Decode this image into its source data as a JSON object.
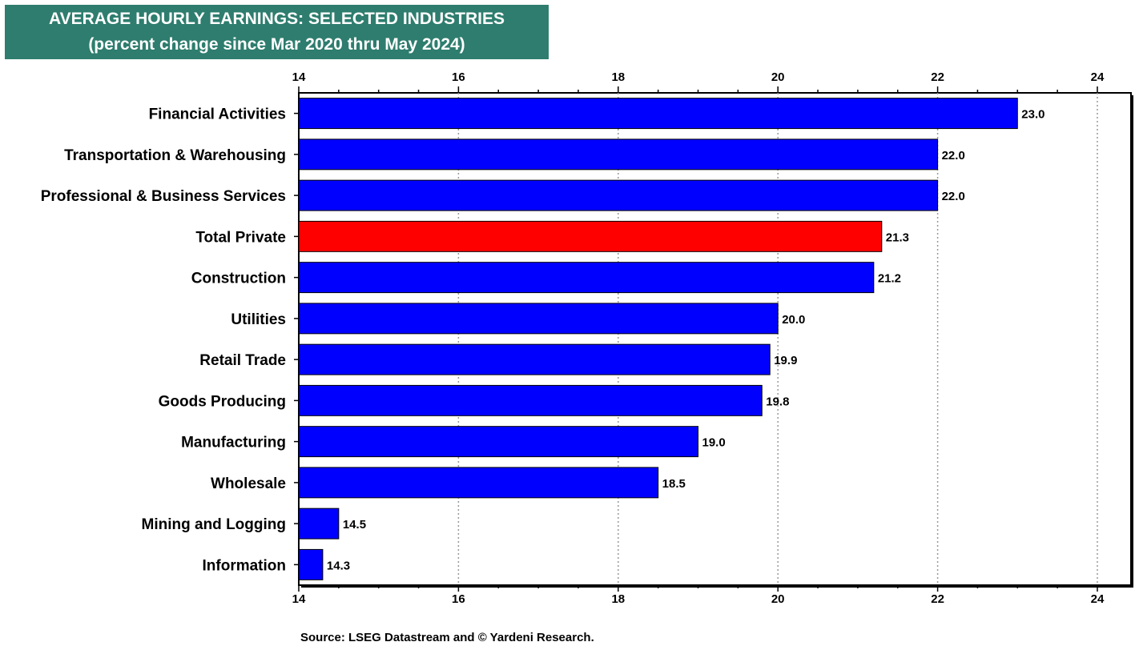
{
  "chart_data": {
    "type": "bar",
    "orientation": "horizontal",
    "title": "AVERAGE HOURLY EARNINGS: SELECTED INDUSTRIES",
    "subtitle": "(percent change since Mar 2020 thru May 2024)",
    "categories": [
      "Financial Activities",
      "Transportation & Warehousing",
      "Professional & Business Services",
      "Total Private",
      "Construction",
      "Utilities",
      "Retail Trade",
      "Goods Producing",
      "Manufacturing",
      "Wholesale",
      "Mining and Logging",
      "Information"
    ],
    "values": [
      23.0,
      22.0,
      22.0,
      21.3,
      21.2,
      20.0,
      19.9,
      19.8,
      19.0,
      18.5,
      14.5,
      14.3
    ],
    "value_labels": [
      "23.0",
      "22.0",
      "22.0",
      "21.3",
      "21.2",
      "20.0",
      "19.9",
      "19.8",
      "19.0",
      "18.5",
      "14.5",
      "14.3"
    ],
    "highlight_category": "Total Private",
    "xlim": [
      14,
      24
    ],
    "xticks": [
      14,
      16,
      18,
      20,
      22,
      24
    ],
    "xtick_labels": [
      "14",
      "16",
      "18",
      "20",
      "22",
      "24"
    ],
    "xaxis_position": "top-and-bottom",
    "grid": "vertical-dotted",
    "legend": "none",
    "colors": {
      "bar": "#0000ff",
      "highlight": "#ff0000",
      "title_bg": "#2e7d6e",
      "title_text": "#ffffff",
      "grid": "#999999"
    }
  },
  "source": "Source: LSEG Datastream and © Yardeni Research."
}
